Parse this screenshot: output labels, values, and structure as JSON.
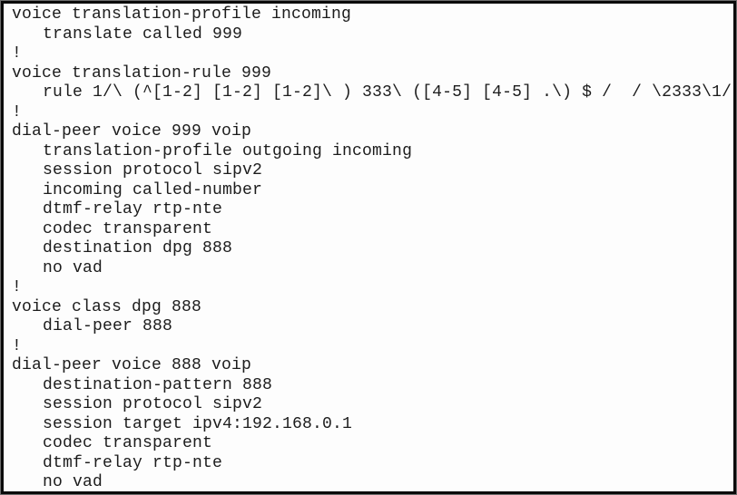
{
  "page": {
    "background_color": "#fdfdfd",
    "border_color": "#0a0a0a",
    "text_color": "#1c1c1c"
  },
  "config": {
    "lines": [
      {
        "text": "voice translation-profile incoming",
        "indent": 0
      },
      {
        "text": "translate called 999",
        "indent": 1
      },
      {
        "text": "!",
        "indent": 0
      },
      {
        "text": "voice translation-rule 999",
        "indent": 0
      },
      {
        "text": "rule 1/\\ (^[1-2] [1-2] [1-2]\\ ) 333\\ ([4-5] [4-5] .\\) $ /  / \\2333\\1/",
        "indent": 1
      },
      {
        "text": "!",
        "indent": 0
      },
      {
        "text": "dial-peer voice 999 voip",
        "indent": 0
      },
      {
        "text": "translation-profile outgoing incoming",
        "indent": 1
      },
      {
        "text": "session protocol sipv2",
        "indent": 1
      },
      {
        "text": "incoming called-number",
        "indent": 1
      },
      {
        "text": "dtmf-relay rtp-nte",
        "indent": 1
      },
      {
        "text": "codec transparent",
        "indent": 1
      },
      {
        "text": "destination dpg 888",
        "indent": 1
      },
      {
        "text": "no vad",
        "indent": 1
      },
      {
        "text": "!",
        "indent": 0
      },
      {
        "text": "voice class dpg 888",
        "indent": 0
      },
      {
        "text": "dial-peer 888",
        "indent": 1
      },
      {
        "text": "!",
        "indent": 0
      },
      {
        "text": "dial-peer voice 888 voip",
        "indent": 0
      },
      {
        "text": "destination-pattern 888",
        "indent": 1
      },
      {
        "text": "session protocol sipv2",
        "indent": 1
      },
      {
        "text": "session target ipv4:192.168.0.1",
        "indent": 1
      },
      {
        "text": "codec transparent",
        "indent": 1
      },
      {
        "text": "dtmf-relay rtp-nte",
        "indent": 1
      },
      {
        "text": "no vad",
        "indent": 1
      }
    ]
  }
}
